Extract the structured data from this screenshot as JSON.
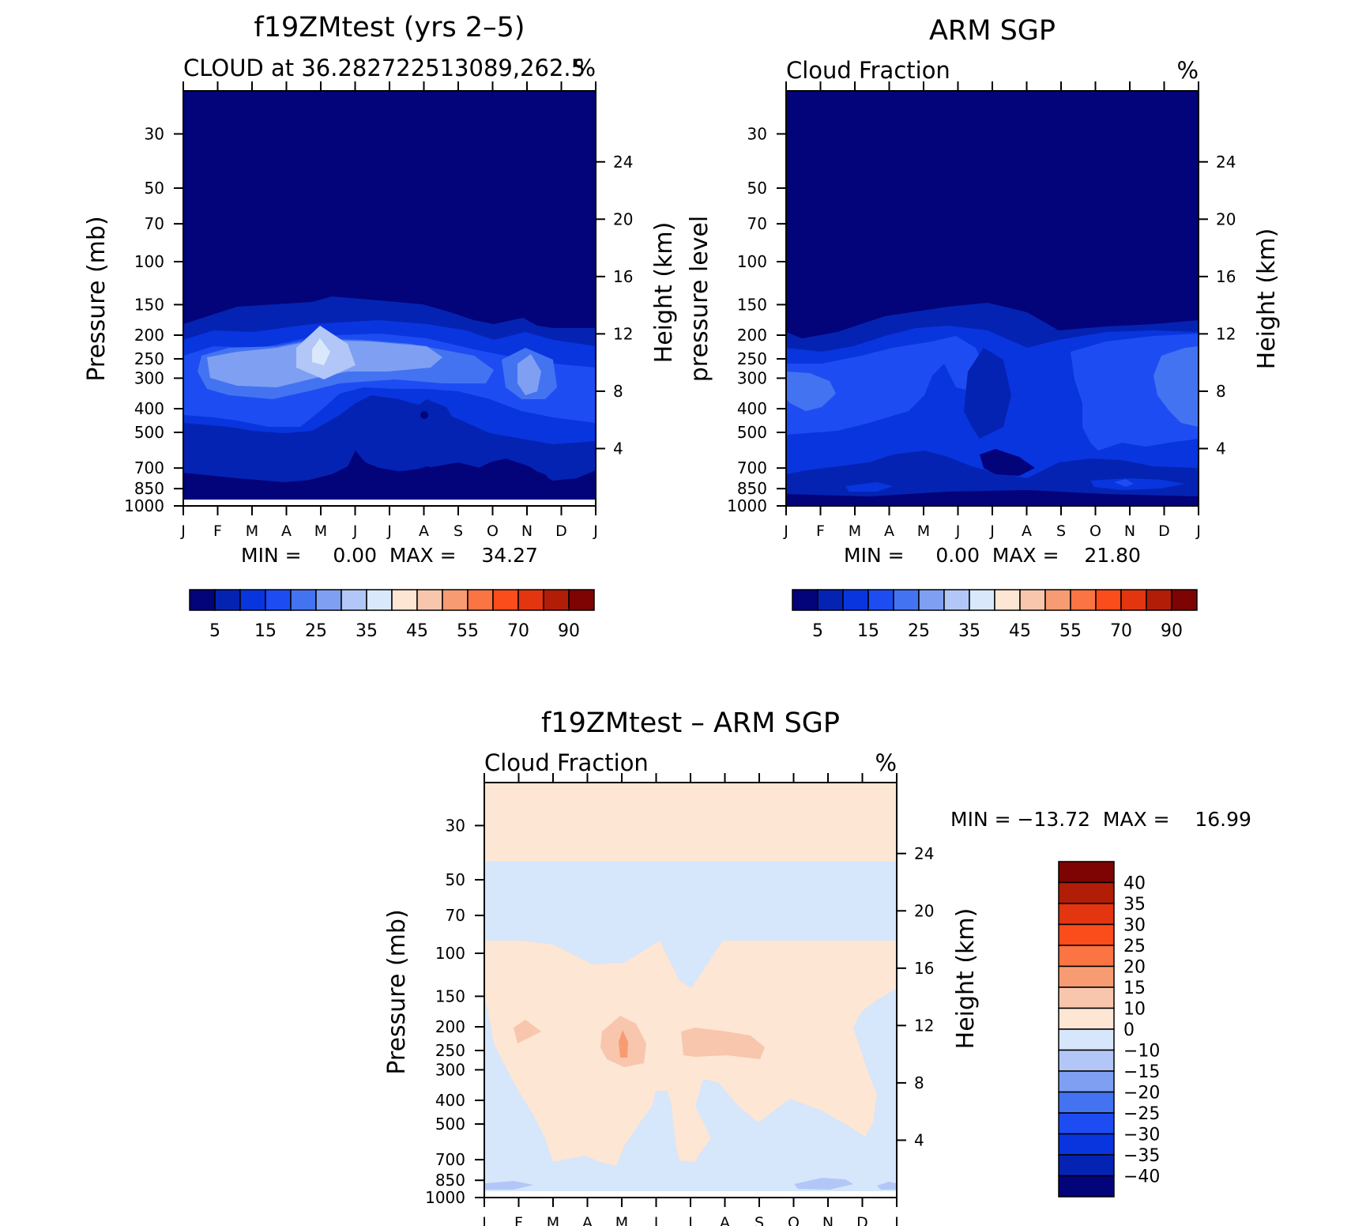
{
  "months": [
    "J",
    "F",
    "M",
    "A",
    "M",
    "J",
    "J",
    "A",
    "S",
    "O",
    "N",
    "D",
    "J"
  ],
  "pressure_ticks": [
    "30",
    "50",
    "70",
    "100",
    "150",
    "200",
    "250",
    "300",
    "400",
    "500",
    "700",
    "850",
    "1000"
  ],
  "height_ticks": [
    "24",
    "20",
    "16",
    "12",
    "8",
    "4"
  ],
  "colors": {
    "abs": [
      "#03037a",
      "#0523b2",
      "#0935df",
      "#1d4df2",
      "#4473f1",
      "#7fa0f2",
      "#b2c7f7",
      "#d9e8fb",
      "#fde6d3",
      "#f8c6ad",
      "#f79c72",
      "#fa7444",
      "#fb4c1c",
      "#e23510",
      "#b21d08",
      "#7e0303"
    ],
    "diff": [
      "#03037a",
      "#0523b2",
      "#0935df",
      "#1d4df2",
      "#4473f1",
      "#7fa0f2",
      "#b2c7f7",
      "#d6e6fb",
      "#fde6d3",
      "#f8c6ad",
      "#f79c72",
      "#fa7444",
      "#fb4c1c",
      "#e23510",
      "#b21d08",
      "#7e0303"
    ]
  },
  "panels": [
    {
      "title": "f19ZMtest (yrs 2–5)",
      "subtitle_left": "CLOUD at 36.282722513089,262.5",
      "subtitle_right": "%",
      "ylabel_left": "Pressure (mb)",
      "ylabel_right": "Height (km)",
      "stats": "MIN =     0.00  MAX =    34.27",
      "colorbar_labels": [
        "5",
        "15",
        "25",
        "35",
        "45",
        "55",
        "70",
        "90"
      ]
    },
    {
      "title": "ARM SGP",
      "subtitle_left": "Cloud Fraction",
      "subtitle_right": "%",
      "ylabel_left": "pressure level",
      "ylabel_right": "Height (km)",
      "stats": "MIN =     0.00  MAX =    21.80",
      "colorbar_labels": [
        "5",
        "15",
        "25",
        "35",
        "45",
        "55",
        "70",
        "90"
      ]
    },
    {
      "title": "f19ZMtest – ARM SGP",
      "subtitle_left": "Cloud Fraction",
      "subtitle_right": "%",
      "ylabel_left": "Pressure (mb)",
      "ylabel_right": "Height (km)",
      "stats": "MIN = −13.72  MAX =    16.99",
      "colorbar_labels": [
        "40",
        "35",
        "30",
        "25",
        "20",
        "15",
        "10",
        "0",
        "−10",
        "−15",
        "−20",
        "−25",
        "−30",
        "−35",
        "−40"
      ]
    }
  ],
  "chart_data": [
    {
      "type": "heatmap",
      "title": "f19ZMtest (yrs 2–5)",
      "subtitle": "CLOUD at 36.282722513089,262.5",
      "units": "%",
      "xlabel": "",
      "ylabel": "Pressure (mb)",
      "ylabel_right": "Height (km)",
      "x": [
        "J",
        "F",
        "M",
        "A",
        "M",
        "J",
        "J",
        "A",
        "S",
        "O",
        "N",
        "D",
        "J"
      ],
      "y_pressure": [
        30,
        50,
        70,
        100,
        150,
        200,
        250,
        300,
        400,
        500,
        700,
        850,
        1000
      ],
      "levels": [
        5,
        10,
        15,
        20,
        25,
        30,
        35,
        40,
        45,
        50,
        55,
        60,
        70,
        80,
        90
      ],
      "min": 0.0,
      "max": 34.27
    },
    {
      "type": "heatmap",
      "title": "ARM SGP",
      "subtitle": "Cloud Fraction",
      "units": "%",
      "xlabel": "",
      "ylabel": "pressure level",
      "ylabel_right": "Height (km)",
      "x": [
        "J",
        "F",
        "M",
        "A",
        "M",
        "J",
        "J",
        "A",
        "S",
        "O",
        "N",
        "D",
        "J"
      ],
      "y_pressure": [
        30,
        50,
        70,
        100,
        150,
        200,
        250,
        300,
        400,
        500,
        700,
        850,
        1000
      ],
      "levels": [
        5,
        10,
        15,
        20,
        25,
        30,
        35,
        40,
        45,
        50,
        55,
        60,
        70,
        80,
        90
      ],
      "min": 0.0,
      "max": 21.8
    },
    {
      "type": "heatmap",
      "title": "f19ZMtest – ARM SGP",
      "subtitle": "Cloud Fraction",
      "units": "%",
      "xlabel": "",
      "ylabel": "Pressure (mb)",
      "ylabel_right": "Height (km)",
      "x": [
        "J",
        "F",
        "M",
        "A",
        "M",
        "J",
        "J",
        "A",
        "S",
        "O",
        "N",
        "D",
        "J"
      ],
      "y_pressure": [
        30,
        50,
        70,
        100,
        150,
        200,
        250,
        300,
        400,
        500,
        700,
        850,
        1000
      ],
      "levels": [
        -40,
        -35,
        -30,
        -25,
        -20,
        -15,
        -10,
        0,
        10,
        15,
        20,
        25,
        30,
        35,
        40
      ],
      "min": -13.72,
      "max": 16.99
    }
  ]
}
